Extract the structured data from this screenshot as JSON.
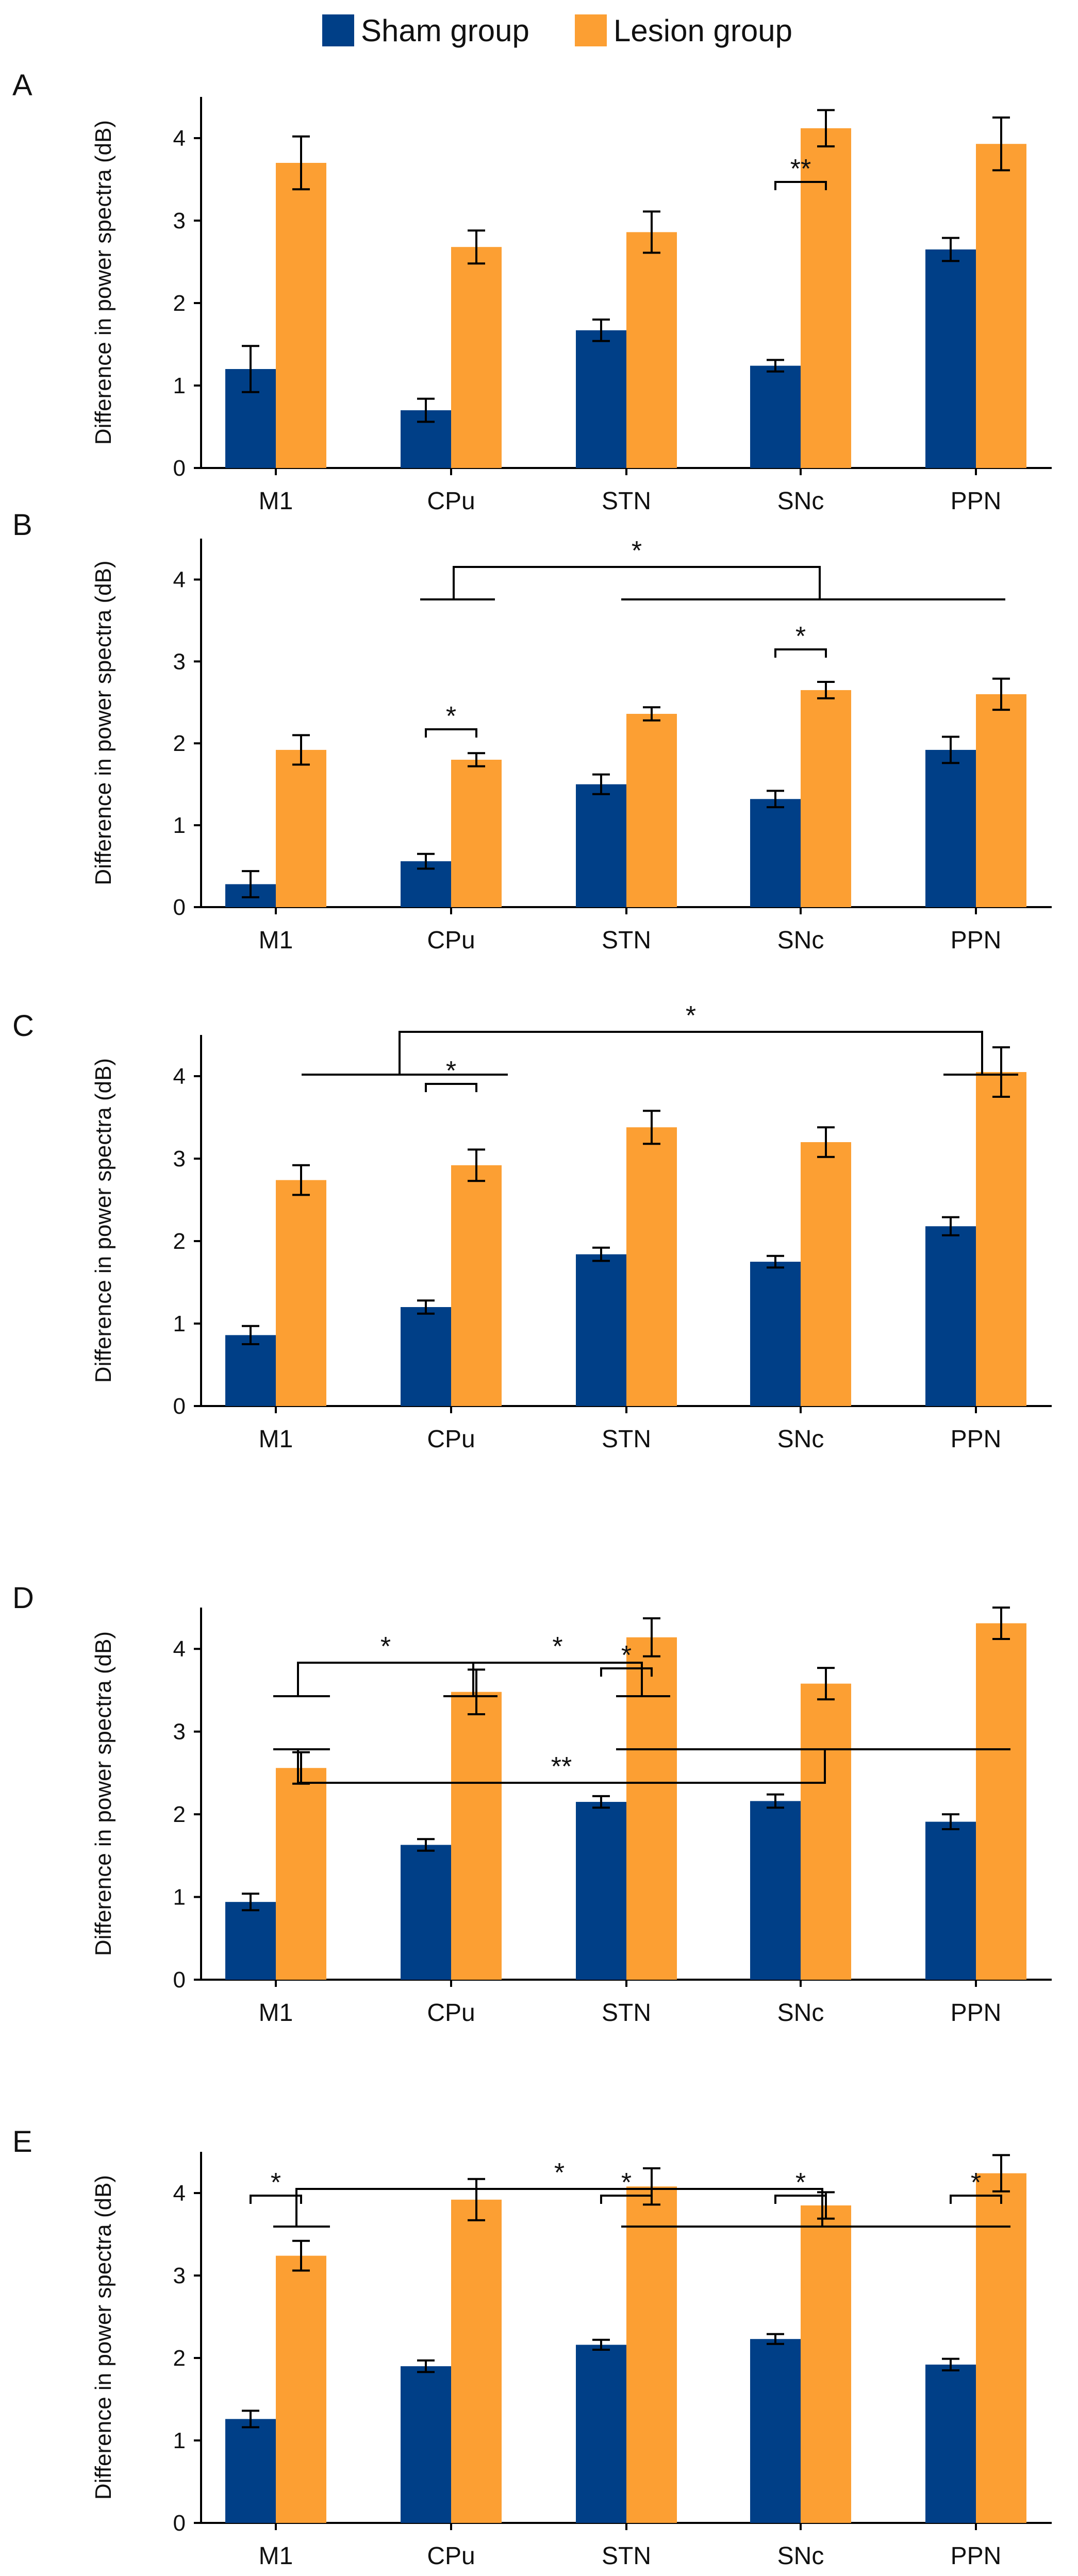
{
  "colors": {
    "sham": "#003f87",
    "lesion": "#fc9f33",
    "axis": "#000000"
  },
  "legend": [
    {
      "name": "Sham group",
      "color_key": "sham"
    },
    {
      "name": "Lesion group",
      "color_key": "lesion"
    }
  ],
  "chart_data": [
    {
      "panel": "A",
      "type": "bar",
      "categories": [
        "M1",
        "CPu",
        "STN",
        "SNc",
        "PPN"
      ],
      "series": [
        {
          "name": "Sham group",
          "values": [
            1.2,
            0.7,
            1.67,
            1.24,
            2.65
          ],
          "errors": [
            0.28,
            0.14,
            0.13,
            0.07,
            0.14
          ]
        },
        {
          "name": "Lesion group",
          "values": [
            3.7,
            2.68,
            2.86,
            4.12,
            3.93
          ],
          "errors": [
            0.32,
            0.2,
            0.25,
            0.22,
            0.32
          ]
        }
      ],
      "ylabel": "Difference in power spectra (dB)",
      "ylim": [
        0,
        4.5
      ],
      "yticks": [
        0,
        1,
        2,
        3,
        4
      ],
      "brackets": [
        {
          "kind": "within",
          "category": "SNc",
          "label": "**"
        }
      ]
    },
    {
      "panel": "B",
      "type": "bar",
      "categories": [
        "M1",
        "CPu",
        "STN",
        "SNc",
        "PPN"
      ],
      "series": [
        {
          "name": "Sham group",
          "values": [
            0.28,
            0.56,
            1.5,
            1.32,
            1.92
          ],
          "errors": [
            0.16,
            0.09,
            0.12,
            0.1,
            0.16
          ]
        },
        {
          "name": "Lesion group",
          "values": [
            1.92,
            1.8,
            2.36,
            2.65,
            2.6
          ],
          "errors": [
            0.18,
            0.08,
            0.08,
            0.1,
            0.19
          ]
        }
      ],
      "ylabel": "Difference in power spectra (dB)",
      "ylim": [
        0,
        4.5
      ],
      "yticks": [
        0,
        1,
        2,
        3,
        4
      ],
      "brackets": [
        {
          "kind": "within",
          "category": "CPu",
          "label": "*"
        },
        {
          "kind": "within",
          "category": "SNc",
          "label": "*"
        },
        {
          "kind": "groups",
          "left": [
            "CPu"
          ],
          "right": [
            "STN",
            "SNc",
            "PPN"
          ],
          "label": "*"
        }
      ]
    },
    {
      "panel": "C",
      "type": "bar",
      "categories": [
        "M1",
        "CPu",
        "STN",
        "SNc",
        "PPN"
      ],
      "series": [
        {
          "name": "Sham group",
          "values": [
            0.86,
            1.2,
            1.84,
            1.75,
            2.18
          ],
          "errors": [
            0.11,
            0.08,
            0.08,
            0.07,
            0.11
          ]
        },
        {
          "name": "Lesion group",
          "values": [
            2.74,
            2.92,
            3.38,
            3.2,
            4.05
          ],
          "errors": [
            0.18,
            0.19,
            0.2,
            0.18,
            0.3
          ]
        }
      ],
      "ylabel": "Difference in power spectra (dB)",
      "ylim": [
        0,
        4.5
      ],
      "yticks": [
        0,
        1,
        2,
        3,
        4
      ],
      "brackets": [
        {
          "kind": "within",
          "category": "CPu",
          "label": "*"
        },
        {
          "kind": "groups",
          "left": [
            "M1",
            "CPu"
          ],
          "right": [
            "PPN"
          ],
          "label": "*"
        }
      ]
    },
    {
      "panel": "D",
      "type": "bar",
      "categories": [
        "M1",
        "CPu",
        "STN",
        "SNc",
        "PPN"
      ],
      "series": [
        {
          "name": "Sham group",
          "values": [
            0.94,
            1.63,
            2.15,
            2.16,
            1.91
          ],
          "errors": [
            0.1,
            0.07,
            0.07,
            0.08,
            0.09
          ]
        },
        {
          "name": "Lesion group",
          "values": [
            2.56,
            3.48,
            4.14,
            3.58,
            4.31
          ],
          "errors": [
            0.19,
            0.27,
            0.23,
            0.19,
            0.19
          ]
        }
      ],
      "ylabel": "Difference in power spectra (dB)",
      "ylim": [
        0,
        4.5
      ],
      "yticks": [
        0,
        1,
        2,
        3,
        4
      ],
      "brackets": [
        {
          "kind": "within",
          "category": "STN",
          "label": "*"
        },
        {
          "kind": "groups",
          "left": [
            "M1"
          ],
          "right": [
            "CPu"
          ],
          "label": "*"
        },
        {
          "kind": "groups",
          "left": [
            "CPu"
          ],
          "right": [
            "STN"
          ],
          "label": "*"
        },
        {
          "kind": "groups",
          "left": [
            "M1"
          ],
          "right": [
            "STN",
            "SNc",
            "PPN"
          ],
          "label": "**"
        }
      ]
    },
    {
      "panel": "E",
      "type": "bar",
      "categories": [
        "M1",
        "CPu",
        "STN",
        "SNc",
        "PPN"
      ],
      "series": [
        {
          "name": "Sham group",
          "values": [
            1.26,
            1.9,
            2.16,
            2.23,
            1.92
          ],
          "errors": [
            0.1,
            0.07,
            0.06,
            0.06,
            0.07
          ]
        },
        {
          "name": "Lesion group",
          "values": [
            3.24,
            3.92,
            4.08,
            3.85,
            4.24
          ],
          "errors": [
            0.18,
            0.25,
            0.22,
            0.16,
            0.22
          ]
        }
      ],
      "ylabel": "Difference in power spectra (dB)",
      "ylim": [
        0,
        4.5
      ],
      "yticks": [
        0,
        1,
        2,
        3,
        4
      ],
      "brackets": [
        {
          "kind": "within",
          "category": "M1",
          "label": "*"
        },
        {
          "kind": "within",
          "category": "STN",
          "label": "*"
        },
        {
          "kind": "within",
          "category": "SNc",
          "label": "*"
        },
        {
          "kind": "within",
          "category": "PPN",
          "label": "*"
        },
        {
          "kind": "groups",
          "left": [
            "M1"
          ],
          "right": [
            "STN",
            "SNc",
            "PPN"
          ],
          "label": "*"
        }
      ]
    }
  ]
}
